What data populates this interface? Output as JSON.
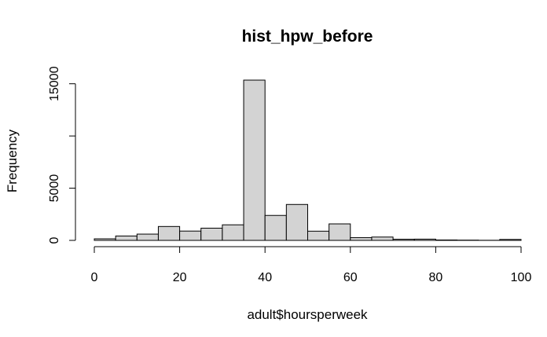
{
  "chart_data": {
    "type": "bar",
    "title": "hist_hpw_before",
    "xlabel": "adult$hoursperweek",
    "ylabel": "Frequency",
    "bin_width": 5,
    "bins": [
      {
        "x0": 0,
        "x1": 5,
        "count": 150
      },
      {
        "x0": 5,
        "x1": 10,
        "count": 420
      },
      {
        "x0": 10,
        "x1": 15,
        "count": 600
      },
      {
        "x0": 15,
        "x1": 20,
        "count": 1330
      },
      {
        "x0": 20,
        "x1": 25,
        "count": 890
      },
      {
        "x0": 25,
        "x1": 30,
        "count": 1170
      },
      {
        "x0": 30,
        "x1": 35,
        "count": 1490
      },
      {
        "x0": 35,
        "x1": 40,
        "count": 15350
      },
      {
        "x0": 40,
        "x1": 45,
        "count": 2390
      },
      {
        "x0": 45,
        "x1": 50,
        "count": 3440
      },
      {
        "x0": 50,
        "x1": 55,
        "count": 880
      },
      {
        "x0": 55,
        "x1": 60,
        "count": 1580
      },
      {
        "x0": 60,
        "x1": 65,
        "count": 260
      },
      {
        "x0": 65,
        "x1": 70,
        "count": 320
      },
      {
        "x0": 70,
        "x1": 75,
        "count": 110
      },
      {
        "x0": 75,
        "x1": 80,
        "count": 120
      },
      {
        "x0": 80,
        "x1": 85,
        "count": 40
      },
      {
        "x0": 85,
        "x1": 90,
        "count": 25
      },
      {
        "x0": 90,
        "x1": 95,
        "count": 10
      },
      {
        "x0": 95,
        "x1": 100,
        "count": 90
      }
    ],
    "xlim": [
      0,
      100
    ],
    "ylim": [
      0,
      15350
    ],
    "x_ticks": [
      0,
      20,
      40,
      60,
      80,
      100
    ],
    "y_ticks": [
      0,
      5000,
      10000,
      15000
    ],
    "y_tick_labels": [
      "0",
      "5000",
      "",
      "15000"
    ],
    "grid": false,
    "legend": "none",
    "colors": {
      "bar_fill": "#d3d3d3",
      "bar_stroke": "#000000",
      "axis": "#000000",
      "background": "#ffffff"
    }
  }
}
